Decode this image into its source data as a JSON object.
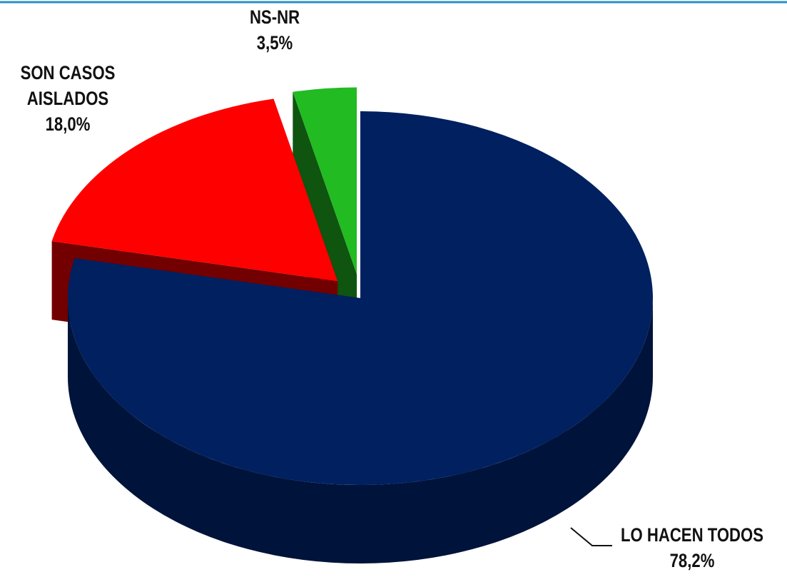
{
  "chart_data": {
    "type": "pie3d",
    "categories": [
      "LO HACEN TODOS",
      "SON CASOS AISLADOS",
      "NS-NR"
    ],
    "values": [
      78.2,
      18.0,
      3.5
    ],
    "value_labels": [
      "78,2%",
      "18,0%",
      "3,5%"
    ],
    "colors": [
      "#002060",
      "#ff0000",
      "#22bb22"
    ]
  }
}
